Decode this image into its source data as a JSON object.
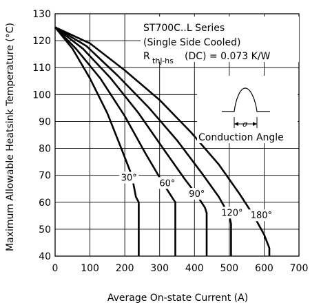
{
  "chart_data": {
    "type": "line",
    "xlabel": "Average On-state Current (A)",
    "ylabel": "Maximum Allowable Heatsink Temperature (°C)",
    "xlim": [
      0,
      700
    ],
    "ylim": [
      40,
      130
    ],
    "xticks": [
      0,
      100,
      200,
      300,
      400,
      500,
      600,
      700
    ],
    "yticks": [
      40,
      50,
      60,
      70,
      80,
      90,
      100,
      110,
      120,
      130
    ],
    "grid": true,
    "annotation": {
      "series_name": "ST700C..L Series",
      "cooling": "(Single Side Cooled)",
      "resistance_symbol": "R",
      "resistance_subscript": "thJ-hs",
      "resistance_value": "(DC) = 0.073 K/W",
      "inset_caption": "Conduction Angle",
      "inset_symbol": "σ"
    },
    "series": [
      {
        "label": "30°",
        "points": [
          [
            0,
            125
          ],
          [
            50,
            117
          ],
          [
            100,
            106
          ],
          [
            150,
            93
          ],
          [
            190,
            80
          ],
          [
            220,
            70
          ],
          [
            232,
            62
          ],
          [
            240,
            60
          ],
          [
            240,
            40
          ]
        ]
      },
      {
        "label": "60°",
        "points": [
          [
            0,
            125
          ],
          [
            60,
            117
          ],
          [
            130,
            106
          ],
          [
            200,
            92
          ],
          [
            260,
            78
          ],
          [
            310,
            67
          ],
          [
            335,
            62
          ],
          [
            345,
            60
          ],
          [
            345,
            40
          ]
        ]
      },
      {
        "label": "90°",
        "points": [
          [
            0,
            125
          ],
          [
            80,
            117
          ],
          [
            160,
            106
          ],
          [
            240,
            93
          ],
          [
            310,
            80
          ],
          [
            370,
            69
          ],
          [
            405,
            63
          ],
          [
            430,
            58
          ],
          [
            435,
            56
          ],
          [
            435,
            40
          ]
        ]
      },
      {
        "label": "120°",
        "points": [
          [
            0,
            125
          ],
          [
            90,
            118
          ],
          [
            180,
            107
          ],
          [
            270,
            95
          ],
          [
            350,
            83
          ],
          [
            420,
            71
          ],
          [
            470,
            62
          ],
          [
            500,
            55
          ],
          [
            505,
            52
          ],
          [
            505,
            40
          ]
        ]
      },
      {
        "label": "180°",
        "points": [
          [
            0,
            125
          ],
          [
            100,
            119
          ],
          [
            200,
            109
          ],
          [
            300,
            98
          ],
          [
            390,
            86
          ],
          [
            470,
            74
          ],
          [
            530,
            63
          ],
          [
            570,
            55
          ],
          [
            600,
            48
          ],
          [
            615,
            43
          ],
          [
            615,
            40
          ]
        ]
      }
    ],
    "labels": [
      {
        "text": "30°",
        "x": 212,
        "y": 68
      },
      {
        "text": "60°",
        "x": 322,
        "y": 66
      },
      {
        "text": "90°",
        "x": 407,
        "y": 62
      },
      {
        "text": "120°",
        "x": 508,
        "y": 55
      },
      {
        "text": "180°",
        "x": 592,
        "y": 54
      }
    ]
  }
}
